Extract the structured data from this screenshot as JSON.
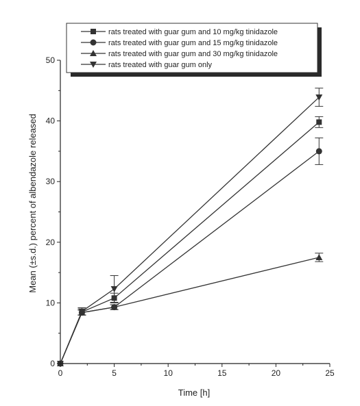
{
  "chart_data": {
    "type": "line",
    "title": "",
    "xlabel": "Time [h]",
    "ylabel": "Mean (±s.d.) percent of albendazole released",
    "xlim": [
      0,
      25
    ],
    "ylim": [
      0,
      50
    ],
    "xticks": [
      0,
      5,
      10,
      15,
      20,
      25
    ],
    "yticks": [
      0,
      10,
      20,
      30,
      40,
      50
    ],
    "grid": false,
    "legend_position": "top",
    "x": [
      0,
      2,
      5,
      24
    ],
    "series": [
      {
        "name": "rats treated with guar gum and 10 mg/kg tinidazole",
        "marker": "square",
        "values": [
          0,
          8.5,
          10.8,
          39.8
        ],
        "errors": [
          0,
          0.5,
          0.8,
          0.9
        ]
      },
      {
        "name": "rats treated with guar gum and 15 mg/kg tinidazole",
        "marker": "circle",
        "values": [
          0,
          8.4,
          9.3,
          35.0
        ],
        "errors": [
          0,
          0.4,
          0.4,
          2.2
        ]
      },
      {
        "name": "rats treated with guar gum and 30 mg/kg tinidazole",
        "marker": "triangle-up",
        "values": [
          0,
          8.4,
          9.3,
          17.5
        ],
        "errors": [
          0,
          0.4,
          0.4,
          0.7
        ]
      },
      {
        "name": "rats treated with guar gum only",
        "marker": "triangle-down",
        "values": [
          0,
          8.6,
          12.3,
          43.9
        ],
        "errors": [
          0,
          0.6,
          2.2,
          1.5
        ]
      }
    ]
  }
}
